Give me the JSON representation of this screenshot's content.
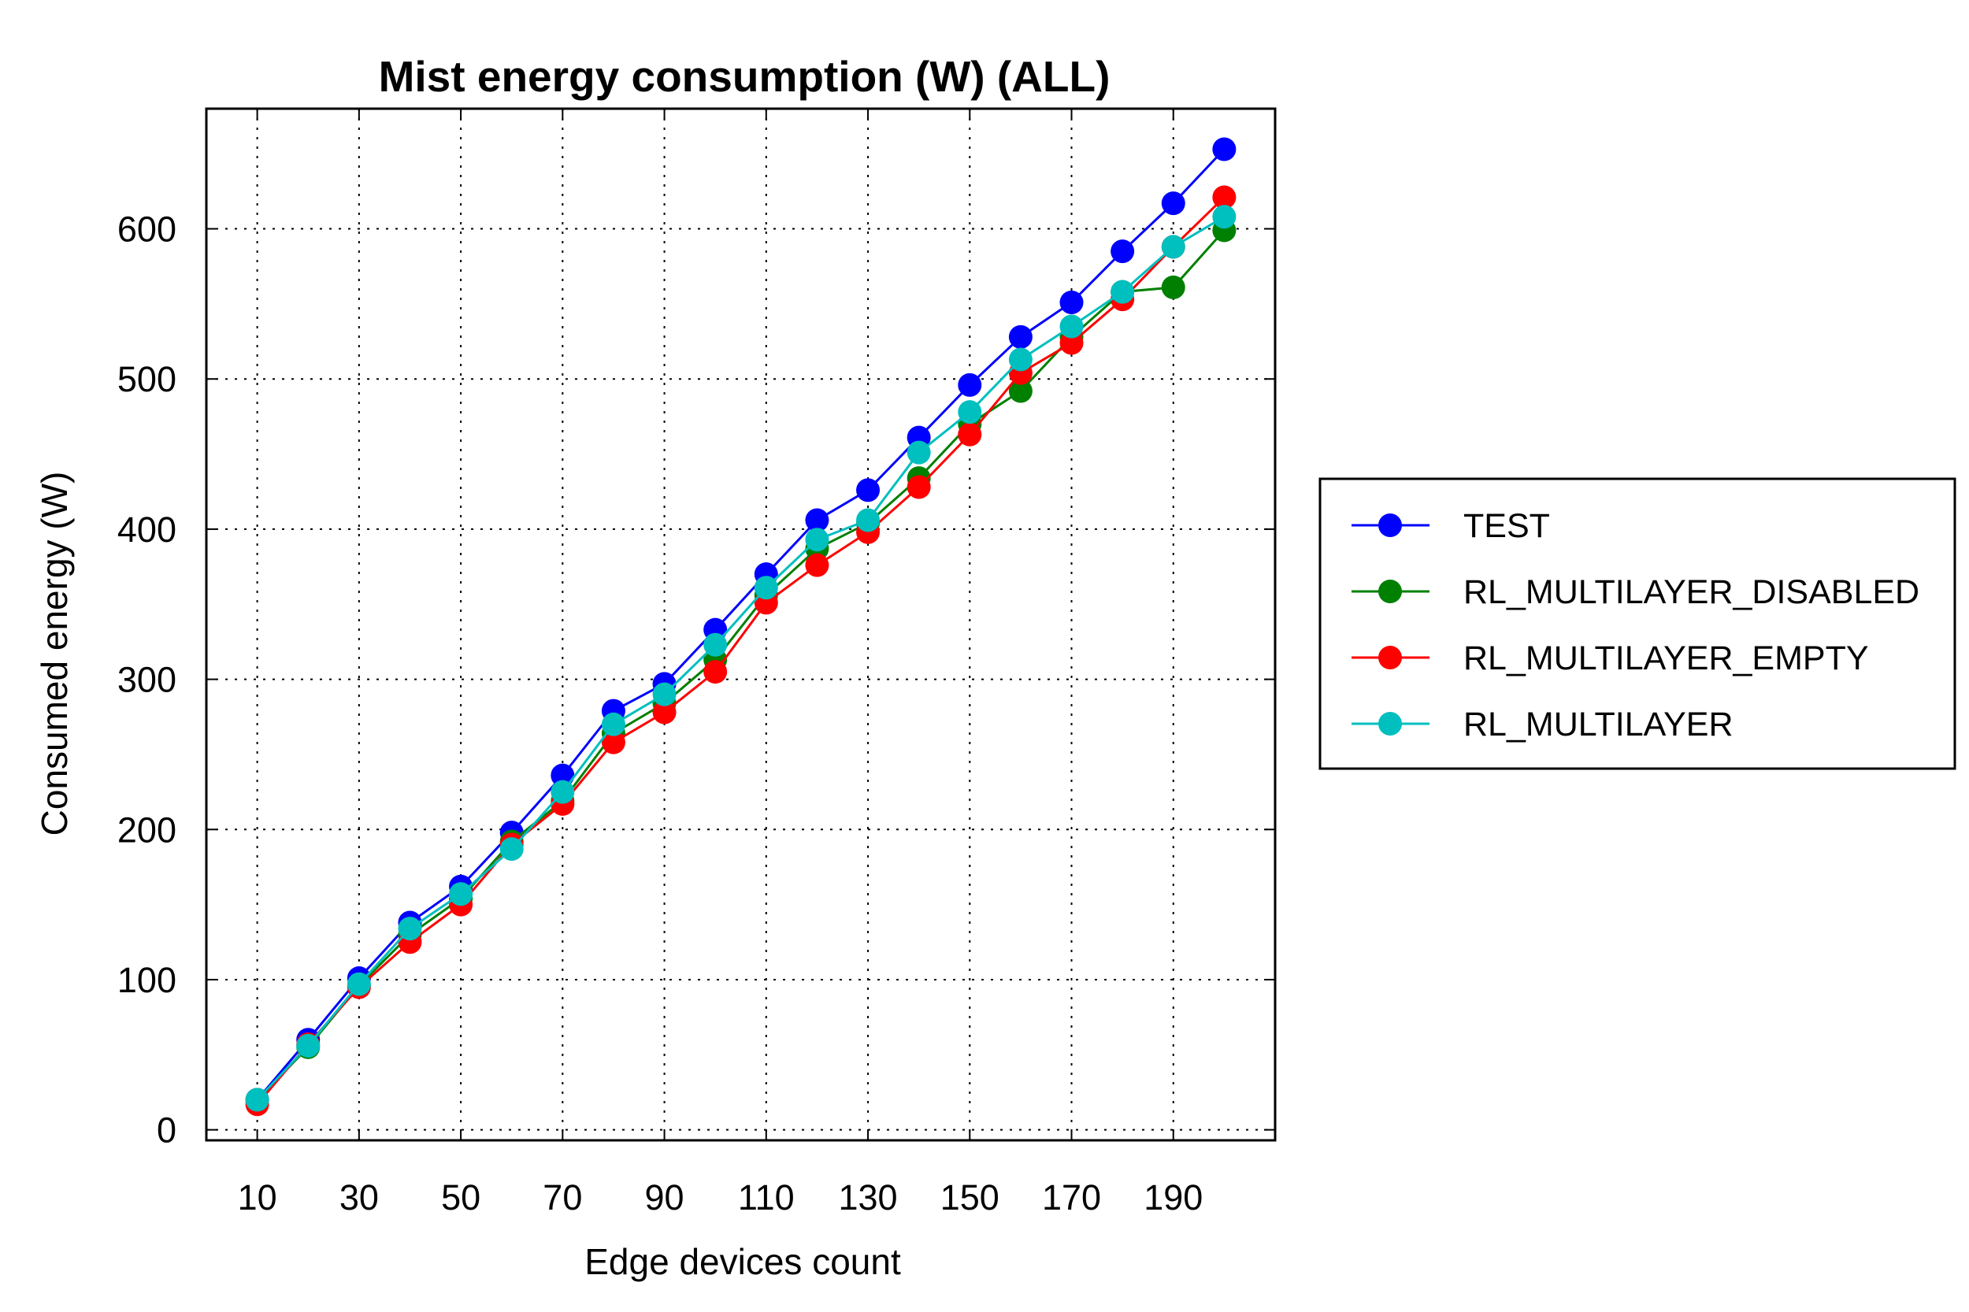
{
  "chart_data": {
    "type": "line",
    "title": "Mist energy consumption (W) (ALL)",
    "xlabel": "Edge devices count",
    "ylabel": "Consumed energy (W)",
    "x": [
      10,
      20,
      30,
      40,
      50,
      60,
      70,
      80,
      90,
      100,
      110,
      120,
      130,
      140,
      150,
      160,
      170,
      180,
      190,
      200
    ],
    "xlim": [
      0,
      210
    ],
    "ylim": [
      -7,
      680
    ],
    "xticks": [
      10,
      30,
      50,
      70,
      90,
      110,
      130,
      150,
      170,
      190
    ],
    "yticks": [
      0,
      100,
      200,
      300,
      400,
      500,
      600
    ],
    "grid": true,
    "legend_position": "right",
    "series": [
      {
        "name": "TEST",
        "color": "#0000ff",
        "values": [
          20,
          60,
          101,
          138,
          162,
          198,
          236,
          279,
          297,
          333,
          370,
          406,
          426,
          461,
          496,
          528,
          551,
          585,
          617,
          653
        ]
      },
      {
        "name": "RL_MULTILAYER_DISABLED",
        "color": "#008000",
        "values": [
          20,
          55,
          96,
          130,
          154,
          192,
          219,
          264,
          284,
          313,
          356,
          387,
          404,
          434,
          470,
          492,
          528,
          558,
          561,
          599
        ]
      },
      {
        "name": "RL_MULTILAYER_EMPTY",
        "color": "#ff0000",
        "values": [
          17,
          57,
          95,
          125,
          150,
          190,
          217,
          258,
          278,
          305,
          351,
          376,
          398,
          428,
          463,
          504,
          524,
          553,
          588,
          621
        ]
      },
      {
        "name": "RL_MULTILAYER",
        "color": "#00bfbf",
        "values": [
          20,
          56,
          97,
          134,
          157,
          187,
          225,
          270,
          290,
          323,
          361,
          393,
          406,
          451,
          478,
          513,
          535,
          558,
          588,
          608
        ]
      }
    ]
  }
}
